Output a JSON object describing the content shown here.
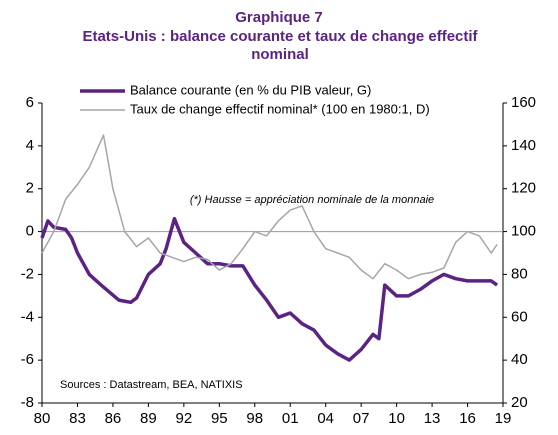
{
  "chart_data": {
    "type": "line",
    "title": "Graphique 7",
    "subtitle": "Etats-Unis : balance courante et taux de change effectif nominal",
    "annotation": "(*) Hausse = appréciation nominale de la monnaie",
    "source": "Sources : Datastream, BEA, NATIXIS",
    "xlim": [
      1980,
      2019
    ],
    "xticks": [
      {
        "value": 1980,
        "label": "80"
      },
      {
        "value": 1983,
        "label": "83"
      },
      {
        "value": 1986,
        "label": "86"
      },
      {
        "value": 1989,
        "label": "89"
      },
      {
        "value": 1992,
        "label": "92"
      },
      {
        "value": 1995,
        "label": "95"
      },
      {
        "value": 1998,
        "label": "98"
      },
      {
        "value": 2001,
        "label": "01"
      },
      {
        "value": 2004,
        "label": "04"
      },
      {
        "value": 2007,
        "label": "07"
      },
      {
        "value": 2010,
        "label": "10"
      },
      {
        "value": 2013,
        "label": "13"
      },
      {
        "value": 2016,
        "label": "16"
      },
      {
        "value": 2019,
        "label": "19"
      }
    ],
    "ylim": [
      -8,
      6
    ],
    "yticks": [
      6,
      4,
      2,
      0,
      -2,
      -4,
      -6,
      -8
    ],
    "y2lim": [
      20,
      160
    ],
    "y2ticks": [
      160,
      140,
      120,
      100,
      80,
      60,
      40,
      20
    ],
    "series": [
      {
        "name": "Balance courante (en % du PIB valeur, G)",
        "color": "#5b2383",
        "axis": "y",
        "x": [
          1980,
          1980.5,
          1981,
          1982,
          1982.5,
          1983,
          1984,
          1985,
          1986.5,
          1987.5,
          1988,
          1989,
          1990,
          1990.5,
          1991.2,
          1992,
          1993,
          1994,
          1995,
          1996,
          1997,
          1998,
          1999,
          2000,
          2001,
          2002,
          2003,
          2004,
          2005,
          2006,
          2007,
          2008,
          2008.5,
          2009,
          2010,
          2011,
          2012,
          2013,
          2014,
          2015,
          2016,
          2017,
          2018,
          2018.5
        ],
        "values": [
          -0.3,
          0.5,
          0.2,
          0.1,
          -0.3,
          -1,
          -2,
          -2.5,
          -3.2,
          -3.3,
          -3.1,
          -2,
          -1.5,
          -0.8,
          0.6,
          -0.5,
          -1,
          -1.5,
          -1.5,
          -1.6,
          -1.6,
          -2.5,
          -3.2,
          -4,
          -3.8,
          -4.3,
          -4.6,
          -5.3,
          -5.7,
          -6,
          -5.5,
          -4.8,
          -5,
          -2.5,
          -3,
          -3,
          -2.7,
          -2.3,
          -2,
          -2.2,
          -2.3,
          -2.3,
          -2.3,
          -2.5
        ]
      },
      {
        "name": "Taux de change effectif nominal* (100 en 1980:1, D)",
        "color": "#a6a6a6",
        "axis": "y2",
        "x": [
          1980,
          1981,
          1982,
          1983,
          1984,
          1985.2,
          1986,
          1987,
          1988,
          1989,
          1990,
          1991,
          1992,
          1993,
          1994,
          1995,
          1996,
          1997,
          1998,
          1999,
          2000,
          2001,
          2002,
          2003,
          2004,
          2005,
          2006,
          2007,
          2008,
          2009,
          2010,
          2011,
          2012,
          2013,
          2014,
          2015,
          2016,
          2017,
          2018,
          2018.5
        ],
        "values": [
          90,
          100,
          115,
          122,
          130,
          145,
          120,
          100,
          93,
          97,
          90,
          88,
          86,
          88,
          87,
          82,
          85,
          92,
          100,
          98,
          105,
          110,
          112,
          100,
          92,
          90,
          88,
          82,
          78,
          85,
          82,
          78,
          80,
          81,
          83,
          95,
          100,
          98,
          90,
          94
        ]
      }
    ]
  }
}
